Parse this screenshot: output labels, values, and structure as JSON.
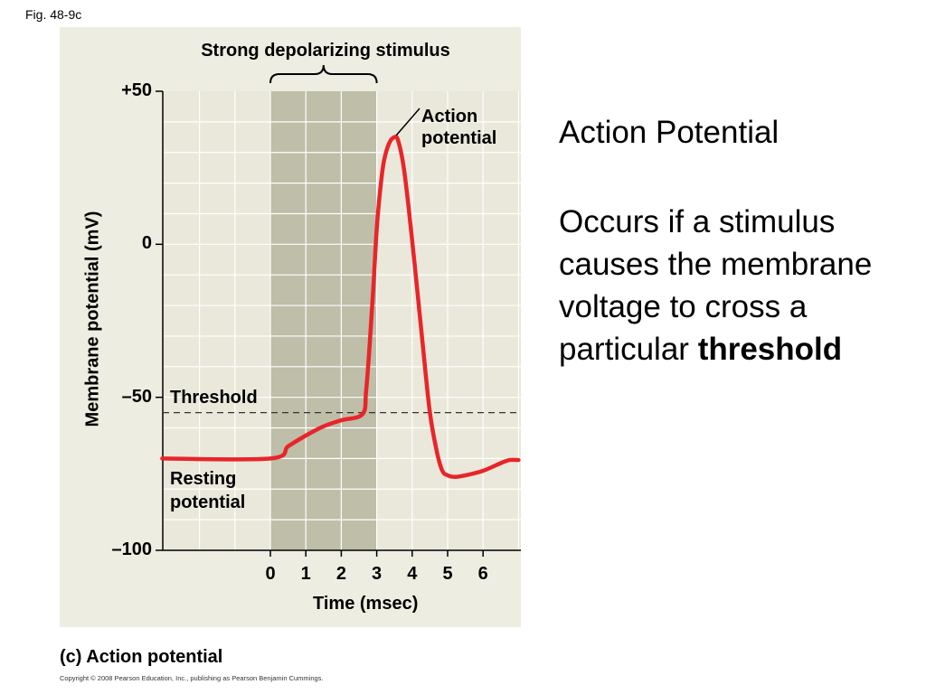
{
  "fig_label": "Fig. 48-9c",
  "chart_data": {
    "type": "line",
    "xlabel": "Time (msec)",
    "ylabel": "Membrane potential (mV)",
    "x_ticks": [
      "0",
      "1",
      "2",
      "3",
      "4",
      "5",
      "6"
    ],
    "y_ticks": [
      {
        "value": 50,
        "label": "+50"
      },
      {
        "value": 0,
        "label": "0"
      },
      {
        "value": -50,
        "label": "–50"
      },
      {
        "value": -100,
        "label": "–100"
      }
    ],
    "xlim": [
      -3.05,
      7.0
    ],
    "ylim": [
      -100,
      50
    ],
    "threshold": -55,
    "stimulus_window": [
      0,
      3
    ],
    "series": [
      {
        "color": "#e8252a",
        "x": [
          -3.05,
          0,
          0.5,
          1.0,
          1.5,
          2.0,
          2.6,
          2.7,
          2.8,
          2.9,
          3.0,
          3.1,
          3.2,
          3.35,
          3.5,
          3.6,
          3.75,
          3.9,
          4.1,
          4.3,
          4.5,
          4.7,
          4.85,
          5.0,
          5.2,
          5.5,
          6.0,
          6.5,
          6.75,
          7.0
        ],
        "y": [
          -70,
          -70,
          -66,
          -62.5,
          -59.5,
          -57.5,
          -55.5,
          -48,
          -33,
          -15,
          5,
          18,
          27,
          33,
          35,
          34,
          26,
          12,
          -10,
          -33,
          -55,
          -68,
          -74,
          -75.5,
          -76,
          -75.5,
          -74,
          -71.5,
          -70.5,
          -70.5
        ]
      }
    ]
  },
  "annotations": {
    "stimulus": "Strong depolarizing stimulus",
    "action_potential": [
      "Action",
      "potential"
    ],
    "threshold": "Threshold",
    "resting": [
      "Resting",
      "potential"
    ]
  },
  "panel_label": "(c) Action potential",
  "copyright": "Copyright © 2008 Pearson Education, Inc., publishing as Pearson Benjamin Cummings.",
  "side": {
    "title": "Action Potential",
    "body": "Occurs if a stimulus causes the membrane voltage to cross a particular",
    "body_bold": "threshold"
  },
  "colors": {
    "panel_bg": "#eeede1",
    "plot_bg": "#e9e8da",
    "stimulus_shade": "#bebea9",
    "grid": "#ffffff",
    "curve": "#e8252a"
  }
}
